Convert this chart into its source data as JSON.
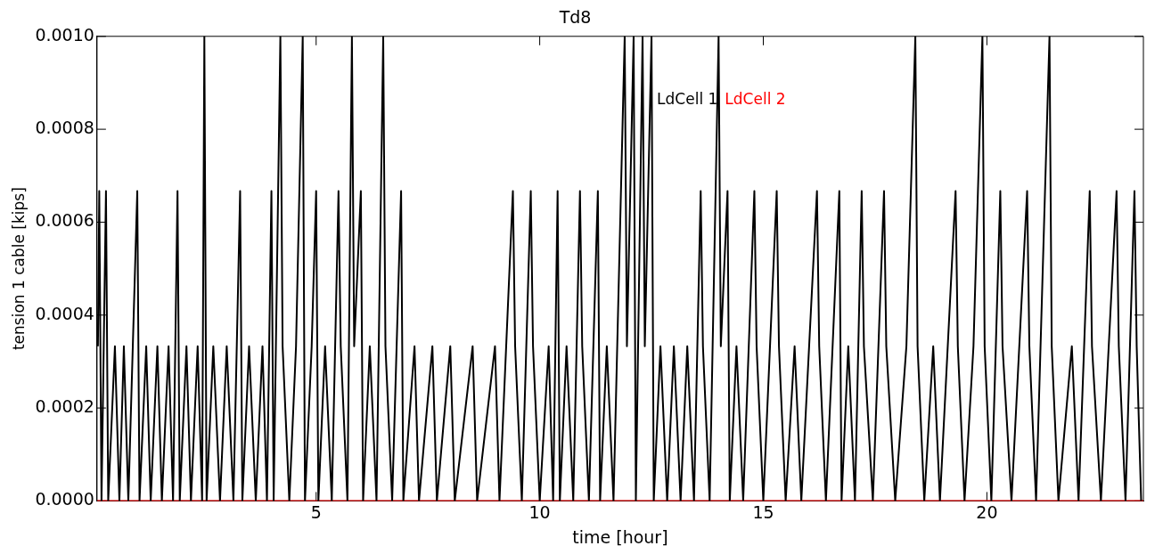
{
  "chart_data": {
    "type": "line",
    "title": "Td8",
    "xlabel": "time [hour]",
    "ylabel": "tension 1 cable [kips]",
    "xlim": [
      0.1,
      23.5
    ],
    "xticks": [
      5,
      10,
      15,
      20
    ],
    "ylim": [
      0,
      0.001
    ],
    "yticks": [
      {
        "value": 0,
        "label": "0.0000"
      },
      {
        "value": 0.0002,
        "label": "0.0002"
      },
      {
        "value": 0.0004,
        "label": "0.0004"
      },
      {
        "value": 0.0006,
        "label": "0.0006"
      },
      {
        "value": 0.0008,
        "label": "0.0008"
      },
      {
        "value": 0.001,
        "label": "0.0010"
      }
    ],
    "grid": false,
    "legend": "top",
    "marker": "none",
    "line_style": "solid",
    "series": [
      {
        "name": "LdCell 1",
        "color": "#000000",
        "x": [
          0.12,
          0.15,
          0.2,
          0.25,
          0.3,
          0.35,
          0.5,
          0.6,
          0.7,
          0.8,
          0.9,
          1.0,
          1.05,
          1.2,
          1.3,
          1.45,
          1.55,
          1.7,
          1.8,
          1.9,
          1.95,
          2.1,
          2.2,
          2.35,
          2.45,
          2.5,
          2.55,
          2.7,
          2.85,
          3.0,
          3.15,
          3.3,
          3.35,
          3.5,
          3.65,
          3.8,
          3.9,
          4.0,
          4.05,
          4.2,
          4.25,
          4.4,
          4.55,
          4.7,
          4.75,
          4.9,
          5.0,
          5.05,
          5.2,
          5.35,
          5.5,
          5.55,
          5.7,
          5.8,
          5.85,
          6.0,
          6.05,
          6.2,
          6.35,
          6.5,
          6.55,
          6.7,
          6.9,
          6.95,
          7.2,
          7.3,
          7.6,
          7.7,
          8.0,
          8.1,
          8.5,
          8.6,
          9.0,
          9.1,
          9.4,
          9.45,
          9.6,
          9.8,
          9.85,
          10.0,
          10.2,
          10.3,
          10.4,
          10.45,
          10.6,
          10.75,
          10.9,
          10.95,
          11.1,
          11.3,
          11.35,
          11.5,
          11.65,
          11.9,
          11.95,
          12.1,
          12.15,
          12.3,
          12.35,
          12.5,
          12.55,
          12.7,
          12.85,
          13.0,
          13.15,
          13.3,
          13.45,
          13.6,
          13.65,
          13.8,
          14.0,
          14.05,
          14.2,
          14.25,
          14.4,
          14.55,
          14.8,
          14.85,
          15.0,
          15.3,
          15.35,
          15.5,
          15.7,
          15.85,
          16.2,
          16.25,
          16.4,
          16.7,
          16.75,
          16.9,
          17.05,
          17.2,
          17.25,
          17.45,
          17.7,
          17.75,
          17.95,
          18.2,
          18.4,
          18.45,
          18.6,
          18.8,
          18.95,
          19.3,
          19.35,
          19.5,
          19.7,
          19.9,
          19.95,
          20.1,
          20.3,
          20.35,
          20.55,
          20.9,
          20.95,
          21.1,
          21.4,
          21.45,
          21.6,
          21.9,
          22.05,
          22.3,
          22.35,
          22.55,
          22.9,
          22.95,
          23.1,
          23.3,
          23.35,
          23.45
        ],
        "values": [
          0.000333,
          0.000667,
          0,
          0.000333,
          0.000667,
          0,
          0.000333,
          0,
          0.000333,
          0,
          0.000333,
          0.000667,
          0,
          0.000333,
          0,
          0.000333,
          0,
          0.000333,
          0,
          0.000667,
          0,
          0.000333,
          0,
          0.000333,
          0,
          0.001,
          0,
          0.000333,
          0,
          0.000333,
          0,
          0.000667,
          0,
          0.000333,
          0,
          0.000333,
          0,
          0.000667,
          0,
          0.001,
          0.000333,
          0,
          0.000333,
          0.001,
          0,
          0.000333,
          0.000667,
          0,
          0.000333,
          0,
          0.000667,
          0.000333,
          0,
          0.001,
          0.000333,
          0.000667,
          0,
          0.000333,
          0,
          0.001,
          0.000333,
          0,
          0.000667,
          0,
          0.000333,
          0,
          0.000333,
          0,
          0.000333,
          0,
          0.000333,
          0,
          0.000333,
          0,
          0.000667,
          0.000333,
          0,
          0.000667,
          0.000333,
          0,
          0.000333,
          0,
          0.000667,
          0,
          0.000333,
          0,
          0.000667,
          0.000333,
          0,
          0.000667,
          0,
          0.000333,
          0,
          0.001,
          0.000333,
          0.001,
          0,
          0.001,
          0.000333,
          0.001,
          0,
          0.000333,
          0,
          0.000333,
          0,
          0.000333,
          0,
          0.000667,
          0.000333,
          0,
          0.001,
          0.000333,
          0.000667,
          0,
          0.000333,
          0,
          0.000667,
          0.000333,
          0,
          0.000667,
          0.000333,
          0,
          0.000333,
          0,
          0.000667,
          0.000333,
          0,
          0.000667,
          0,
          0.000333,
          0,
          0.000667,
          0.000333,
          0,
          0.000667,
          0.000333,
          0,
          0.000333,
          0.001,
          0.000333,
          0,
          0.000333,
          0,
          0.000667,
          0.000333,
          0,
          0.000333,
          0.001,
          0.000333,
          0,
          0.000667,
          0.000333,
          0,
          0.000667,
          0.000333,
          0,
          0.001,
          0.000333,
          0,
          0.000333,
          0,
          0.000667,
          0.000333,
          0,
          0.000667,
          0.000333,
          0,
          0.000667,
          0.000333,
          0
        ]
      },
      {
        "name": "LdCell 2",
        "color": "#ff0000",
        "x": [
          0.1,
          23.5
        ],
        "values": [
          0,
          0
        ]
      }
    ]
  }
}
